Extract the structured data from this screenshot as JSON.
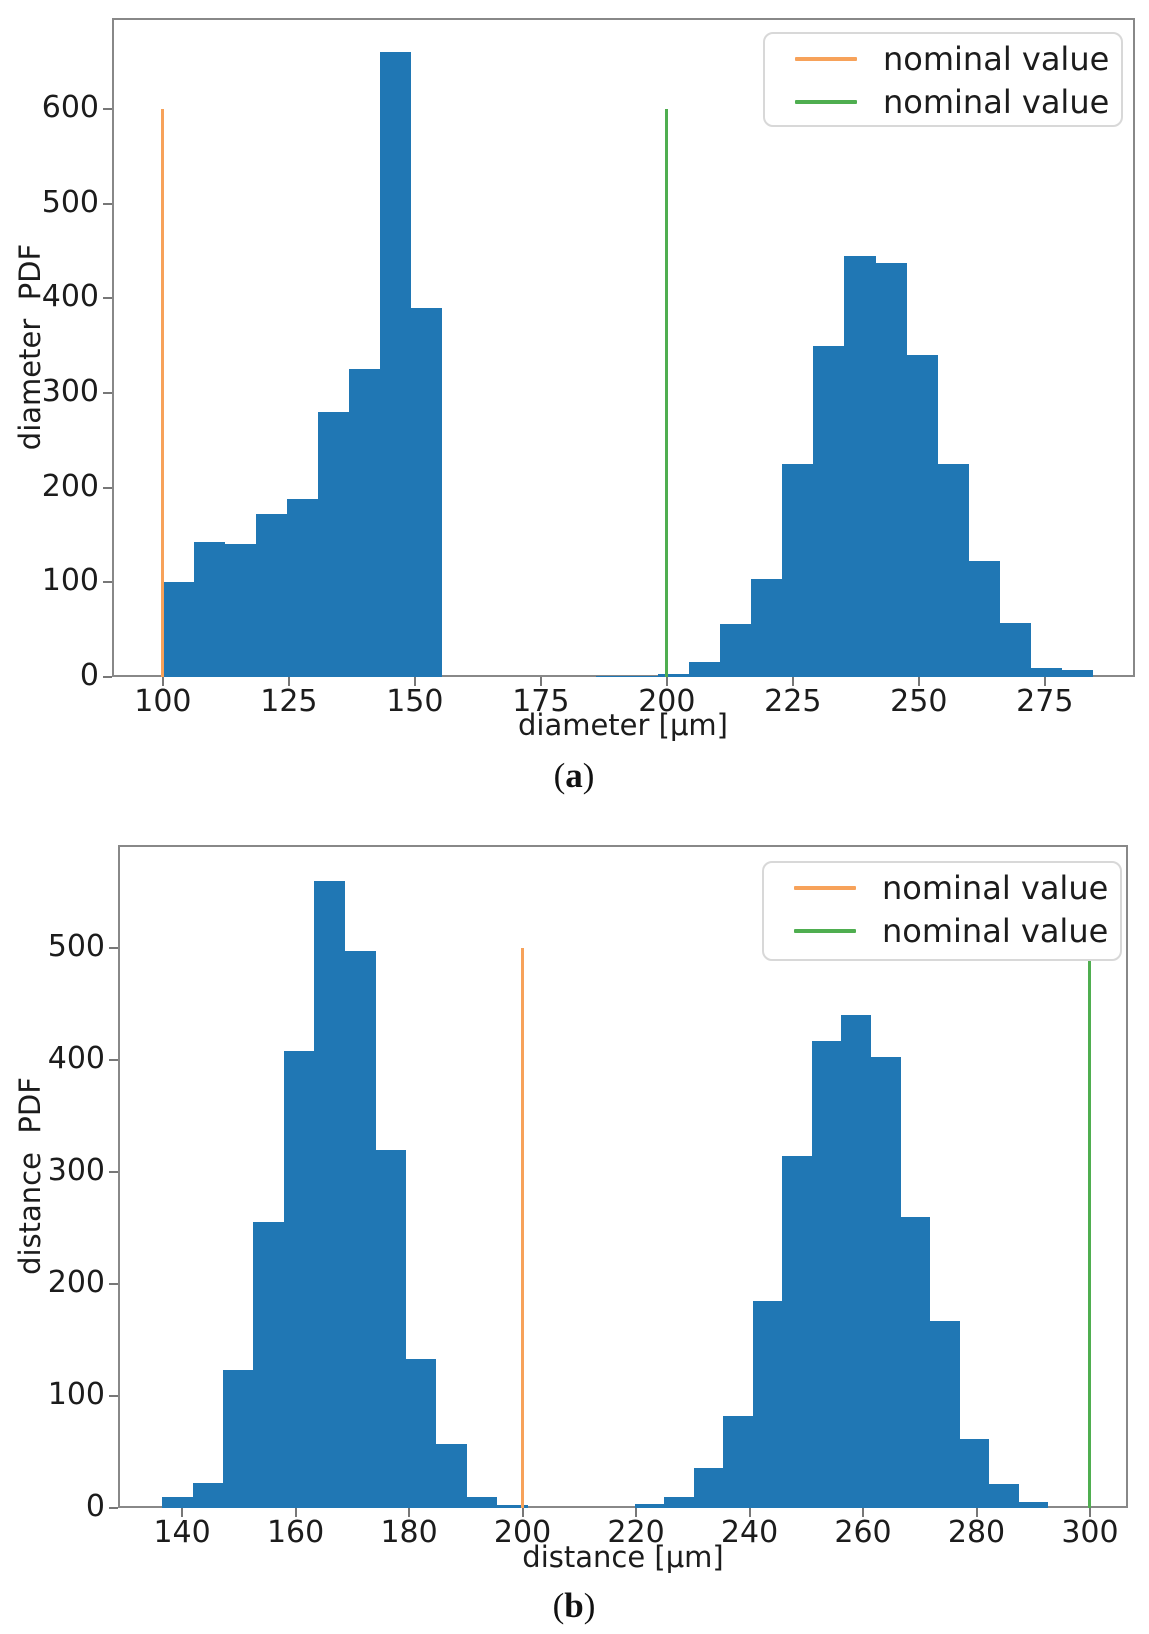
{
  "figure": {
    "captions": [
      {
        "open": "(",
        "letter": "a",
        "close": ")"
      },
      {
        "open": "(",
        "letter": "b",
        "close": ")"
      }
    ]
  },
  "colors": {
    "bar": "#2077b4",
    "orange": "#f7a25a",
    "green": "#4fae50",
    "spine": "#888888",
    "tick": "#777777"
  },
  "chart_data": [
    {
      "type": "bar",
      "subtype": "histogram",
      "title": "",
      "xlabel": "diameter [μm]",
      "ylabel": "diameter  PDF",
      "xlim": [
        89.9,
        292.9
      ],
      "ylim": [
        0,
        696
      ],
      "xticks": [
        100,
        125,
        150,
        175,
        200,
        225,
        250,
        275
      ],
      "yticks": [
        0,
        100,
        200,
        300,
        400,
        500,
        600
      ],
      "grid": false,
      "legend_position": "upper right",
      "clusters": [
        {
          "bin_start": 100.0,
          "bin_width": 6.15,
          "counts": [
            100,
            143,
            140,
            172,
            188,
            280,
            325,
            660,
            390
          ]
        },
        {
          "bin_start": 186.0,
          "bin_width": 6.15,
          "counts": [
            1.5,
            1.5,
            3,
            16,
            56,
            103,
            225,
            350,
            445,
            437,
            340,
            225,
            123,
            57,
            10,
            7
          ]
        }
      ],
      "vlines": [
        {
          "x": 100,
          "ymax": 600,
          "color_key": "orange"
        },
        {
          "x": 200,
          "ymax": 600,
          "color_key": "green"
        }
      ],
      "legend": [
        {
          "label": "nominal value",
          "color_key": "orange"
        },
        {
          "label": "nominal value",
          "color_key": "green"
        }
      ]
    },
    {
      "type": "bar",
      "subtype": "histogram",
      "title": "",
      "xlabel": "distance [μm]",
      "ylabel": "distance  PDF",
      "xlim": [
        128.7,
        306.7
      ],
      "ylim": [
        0,
        592
      ],
      "xticks": [
        140,
        160,
        180,
        200,
        220,
        240,
        260,
        280,
        300
      ],
      "yticks": [
        0,
        100,
        200,
        300,
        400,
        500
      ],
      "grid": false,
      "legend_position": "upper right",
      "clusters": [
        {
          "bin_start": 136.5,
          "bin_width": 5.36,
          "counts": [
            10,
            22,
            123,
            255,
            408,
            560,
            497,
            320,
            133,
            57,
            10,
            3
          ]
        },
        {
          "bin_start": 219.8,
          "bin_width": 5.2,
          "counts": [
            4,
            10,
            36,
            82,
            185,
            314,
            417,
            440,
            403,
            260,
            167,
            62,
            21,
            5
          ]
        }
      ],
      "vlines": [
        {
          "x": 200,
          "ymax": 500,
          "color_key": "orange"
        },
        {
          "x": 300,
          "ymax": 500,
          "color_key": "green"
        }
      ],
      "legend": [
        {
          "label": "nominal value",
          "color_key": "orange"
        },
        {
          "label": "nominal value",
          "color_key": "green"
        }
      ]
    }
  ]
}
